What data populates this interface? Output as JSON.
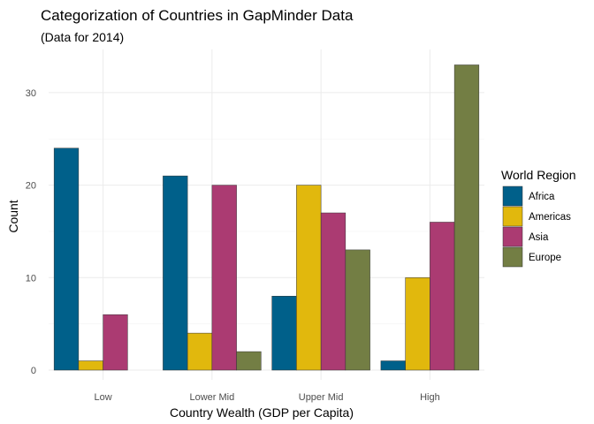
{
  "chart_data": {
    "type": "bar",
    "title": "Categorization of Countries in GapMinder Data",
    "subtitle": "(Data for 2014)",
    "xlabel": "Country Wealth (GDP per Capita)",
    "ylabel": "Count",
    "categories": [
      "Low",
      "Lower Mid",
      "Upper Mid",
      "High"
    ],
    "ylim": [
      0,
      34
    ],
    "yticks": [
      0,
      10,
      20,
      30
    ],
    "grid": true,
    "legend": {
      "title": "World Region",
      "placement": "right"
    },
    "series": [
      {
        "name": "Africa",
        "color": "#00608A",
        "values": [
          24,
          21,
          8,
          1
        ]
      },
      {
        "name": "Americas",
        "color": "#E1B80D",
        "values": [
          1,
          4,
          20,
          10
        ]
      },
      {
        "name": "Asia",
        "color": "#AB3B72",
        "values": [
          6,
          20,
          17,
          16
        ]
      },
      {
        "name": "Europe",
        "color": "#737E44",
        "values": [
          null,
          2,
          13,
          33
        ]
      }
    ]
  }
}
